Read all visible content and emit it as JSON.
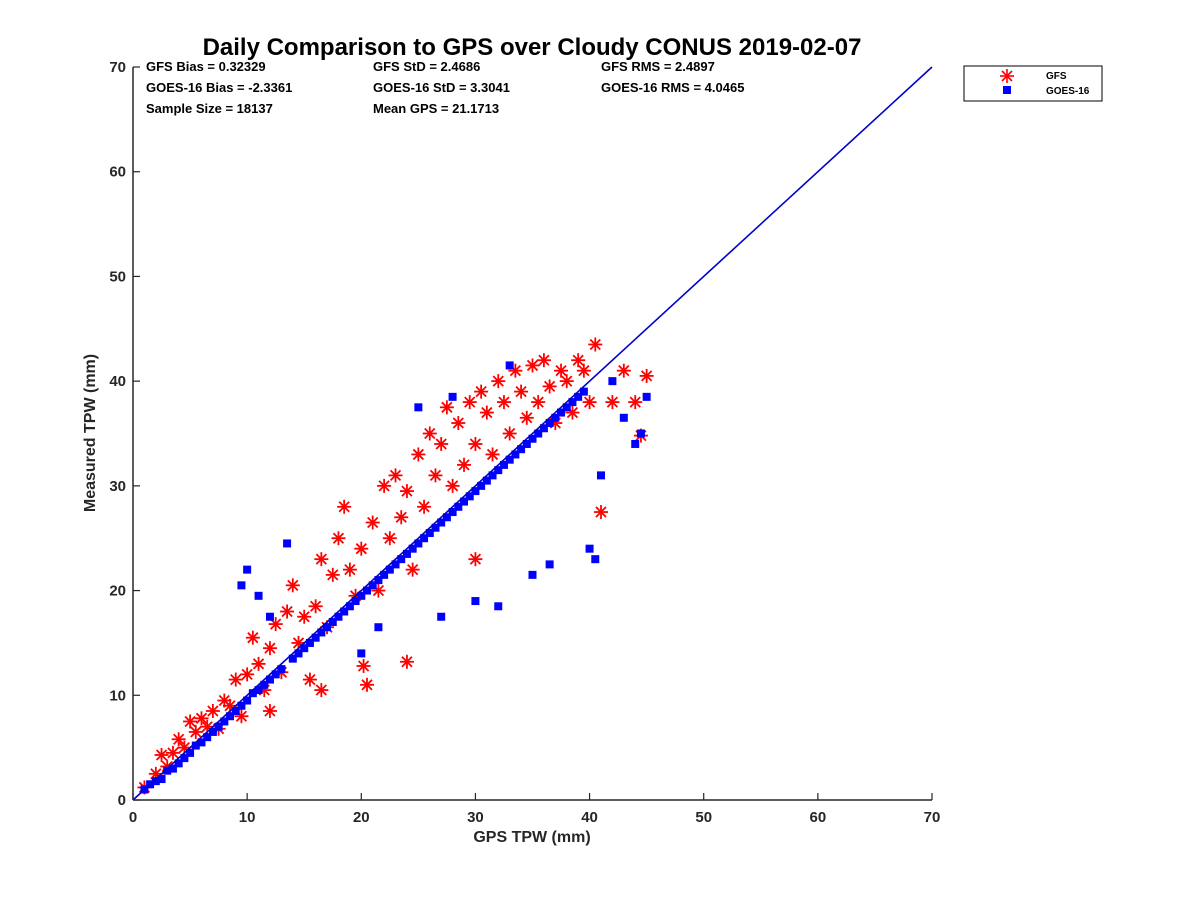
{
  "chart_data": {
    "type": "scatter",
    "title": "Daily Comparison to GPS over Cloudy CONUS 2019-02-07",
    "xlabel": "GPS TPW (mm)",
    "ylabel": "Measured TPW (mm)",
    "xlim": [
      0,
      70
    ],
    "ylim": [
      0,
      70
    ],
    "xticks": [
      "0",
      "10",
      "20",
      "30",
      "40",
      "50",
      "60",
      "70"
    ],
    "yticks": [
      "0",
      "10",
      "20",
      "30",
      "40",
      "50",
      "60",
      "70"
    ],
    "grid": false,
    "legend_position": "outside-top-right",
    "stats": [
      [
        "GFS Bias = 0.32329",
        "GFS StD = 2.4686",
        "GFS RMS = 2.4897"
      ],
      [
        "GOES-16 Bias = -2.3361",
        "GOES-16 StD = 3.3041",
        "GOES-16 RMS = 4.0465"
      ],
      [
        "Sample Size = 18137",
        "Mean GPS = 21.1713",
        ""
      ]
    ],
    "reference_line": {
      "x": [
        0,
        70
      ],
      "y": [
        0,
        70
      ],
      "color": "#0000cc"
    },
    "series": [
      {
        "name": "GFS",
        "marker": "asterisk",
        "color": "#ff0000",
        "points": [
          [
            1,
            1.2
          ],
          [
            2,
            2.5
          ],
          [
            2.5,
            4.3
          ],
          [
            3,
            3.2
          ],
          [
            3.5,
            4.5
          ],
          [
            4,
            5.8
          ],
          [
            4.5,
            5
          ],
          [
            5,
            7.5
          ],
          [
            5.5,
            6.5
          ],
          [
            6,
            7.8
          ],
          [
            6.5,
            7
          ],
          [
            7,
            8.5
          ],
          [
            7.5,
            6.8
          ],
          [
            8,
            9.5
          ],
          [
            8.5,
            9
          ],
          [
            9,
            11.5
          ],
          [
            9.5,
            8
          ],
          [
            10,
            12
          ],
          [
            10.5,
            15.5
          ],
          [
            11,
            13
          ],
          [
            11.5,
            10.5
          ],
          [
            12,
            14.5
          ],
          [
            12.5,
            16.8
          ],
          [
            13,
            12.2
          ],
          [
            13.5,
            18
          ],
          [
            14,
            20.5
          ],
          [
            14.5,
            15
          ],
          [
            15,
            17.5
          ],
          [
            15.5,
            11.5
          ],
          [
            16,
            18.5
          ],
          [
            16.5,
            23
          ],
          [
            17,
            16.5
          ],
          [
            17.5,
            21.5
          ],
          [
            18,
            25
          ],
          [
            18.5,
            28
          ],
          [
            19,
            22
          ],
          [
            19.5,
            19.5
          ],
          [
            20,
            24
          ],
          [
            20.5,
            11
          ],
          [
            21,
            26.5
          ],
          [
            21.5,
            20
          ],
          [
            22,
            30
          ],
          [
            22.5,
            25
          ],
          [
            23,
            31
          ],
          [
            23.5,
            27
          ],
          [
            24,
            29.5
          ],
          [
            24.5,
            22
          ],
          [
            25,
            33
          ],
          [
            25.5,
            28
          ],
          [
            26,
            35
          ],
          [
            26.5,
            31
          ],
          [
            27,
            34
          ],
          [
            27.5,
            37.5
          ],
          [
            28,
            30
          ],
          [
            28.5,
            36
          ],
          [
            29,
            32
          ],
          [
            29.5,
            38
          ],
          [
            30,
            34
          ],
          [
            30.5,
            39
          ],
          [
            31,
            37
          ],
          [
            31.5,
            33
          ],
          [
            32,
            40
          ],
          [
            32.5,
            38
          ],
          [
            33,
            35
          ],
          [
            33.5,
            41
          ],
          [
            34,
            39
          ],
          [
            34.5,
            36.5
          ],
          [
            35,
            41.5
          ],
          [
            35.5,
            38
          ],
          [
            36,
            42
          ],
          [
            36.5,
            39.5
          ],
          [
            37,
            36
          ],
          [
            37.5,
            41
          ],
          [
            38,
            40
          ],
          [
            38.5,
            37
          ],
          [
            39,
            42
          ],
          [
            39.5,
            41
          ],
          [
            40,
            38
          ],
          [
            40.5,
            43.5
          ],
          [
            41,
            27.5
          ],
          [
            42,
            38
          ],
          [
            43,
            41
          ],
          [
            44,
            38
          ],
          [
            44.5,
            34.8
          ],
          [
            45,
            40.5
          ],
          [
            20.2,
            12.8
          ],
          [
            24,
            13.2
          ],
          [
            16.5,
            10.5
          ],
          [
            12,
            8.5
          ],
          [
            30,
            23
          ]
        ]
      },
      {
        "name": "GOES-16",
        "marker": "square",
        "color": "#0000ff",
        "points": [
          [
            1,
            1
          ],
          [
            1.5,
            1.5
          ],
          [
            2,
            1.8
          ],
          [
            2.5,
            2
          ],
          [
            3,
            2.8
          ],
          [
            3.5,
            3
          ],
          [
            4,
            3.5
          ],
          [
            4.5,
            4
          ],
          [
            5,
            4.5
          ],
          [
            5.5,
            5.2
          ],
          [
            6,
            5.5
          ],
          [
            6.5,
            6
          ],
          [
            7,
            6.5
          ],
          [
            7.5,
            7
          ],
          [
            8,
            7.5
          ],
          [
            8.5,
            8
          ],
          [
            9,
            8.5
          ],
          [
            9.5,
            9
          ],
          [
            10,
            9.5
          ],
          [
            10.5,
            10.2
          ],
          [
            11,
            10.5
          ],
          [
            11.5,
            11
          ],
          [
            12,
            11.5
          ],
          [
            12.5,
            12
          ],
          [
            13,
            12.5
          ],
          [
            13.5,
            24.5
          ],
          [
            14,
            13.5
          ],
          [
            14.5,
            14
          ],
          [
            15,
            14.5
          ],
          [
            15.5,
            15
          ],
          [
            9.5,
            20.5
          ],
          [
            10,
            22
          ],
          [
            11,
            19.5
          ],
          [
            12,
            17.5
          ],
          [
            16,
            15.5
          ],
          [
            16.5,
            16
          ],
          [
            17,
            16.5
          ],
          [
            17.5,
            17
          ],
          [
            18,
            17.5
          ],
          [
            18.5,
            18
          ],
          [
            19,
            18.5
          ],
          [
            19.5,
            19
          ],
          [
            20,
            19.5
          ],
          [
            20.5,
            20
          ],
          [
            21,
            20.5
          ],
          [
            21.5,
            21
          ],
          [
            22,
            21.5
          ],
          [
            22.5,
            22
          ],
          [
            23,
            22.5
          ],
          [
            23.5,
            23
          ],
          [
            24,
            23.5
          ],
          [
            24.5,
            24
          ],
          [
            25,
            24.5
          ],
          [
            25.5,
            25
          ],
          [
            26,
            25.5
          ],
          [
            26.5,
            26
          ],
          [
            27,
            26.5
          ],
          [
            27.5,
            27
          ],
          [
            28,
            27.5
          ],
          [
            28.5,
            28
          ],
          [
            29,
            28.5
          ],
          [
            29.5,
            29
          ],
          [
            30,
            29.5
          ],
          [
            30.5,
            30
          ],
          [
            31,
            30.5
          ],
          [
            31.5,
            31
          ],
          [
            32,
            31.5
          ],
          [
            32.5,
            32
          ],
          [
            33,
            32.5
          ],
          [
            33.5,
            33
          ],
          [
            34,
            33.5
          ],
          [
            34.5,
            34
          ],
          [
            35,
            34.5
          ],
          [
            35.5,
            35
          ],
          [
            36,
            35.5
          ],
          [
            36.5,
            36
          ],
          [
            37,
            36.5
          ],
          [
            37.5,
            37
          ],
          [
            38,
            37.5
          ],
          [
            38.5,
            38
          ],
          [
            39,
            38.5
          ],
          [
            39.5,
            39
          ],
          [
            40,
            24
          ],
          [
            40.5,
            23
          ],
          [
            41,
            31
          ],
          [
            42,
            40
          ],
          [
            43,
            36.5
          ],
          [
            44,
            34
          ],
          [
            44.5,
            35
          ],
          [
            45,
            38.5
          ],
          [
            25,
            37.5
          ],
          [
            28,
            38.5
          ],
          [
            33,
            41.5
          ],
          [
            35,
            21.5
          ],
          [
            36.5,
            22.5
          ],
          [
            30,
            19
          ],
          [
            32,
            18.5
          ],
          [
            27,
            17.5
          ],
          [
            21.5,
            16.5
          ],
          [
            20,
            14
          ]
        ]
      }
    ]
  }
}
